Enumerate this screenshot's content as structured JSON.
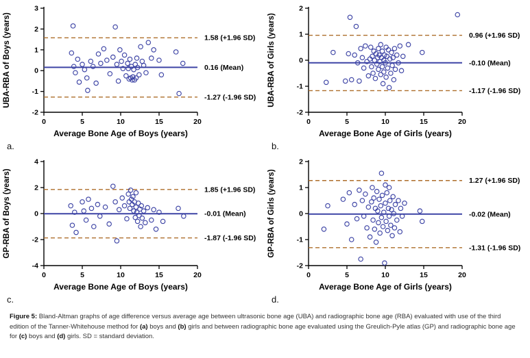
{
  "colors": {
    "points": "#3d44a5",
    "mean_line": "#3d44a5",
    "sd_line": "#ad6d2a",
    "axis": "#000000"
  },
  "panel_labels": [
    "a.",
    "b.",
    "c.",
    "d."
  ],
  "chart_data": [
    {
      "type": "scatter",
      "panel": "a",
      "xlabel": "Average Bone Age of Boys (years)",
      "ylabel": "UBA-RBA of Boys (years)",
      "xlim": [
        0,
        20
      ],
      "ylim": [
        -2,
        3
      ],
      "xticks": [
        0,
        5,
        10,
        15,
        20
      ],
      "yticks": [
        -2,
        -1,
        0,
        1,
        2,
        3
      ],
      "mean": 0.16,
      "upper_sd": 1.58,
      "lower_sd": -1.27,
      "annotations": [
        "1.58 (+1.96 SD)",
        "0.16 (Mean)",
        "-1.27 (-1.96 SD)"
      ],
      "grid": false,
      "points": [
        [
          3.8,
          2.15
        ],
        [
          3.6,
          0.85
        ],
        [
          3.9,
          0.2
        ],
        [
          4.1,
          -0.1
        ],
        [
          4.4,
          0.55
        ],
        [
          4.6,
          -0.55
        ],
        [
          5.0,
          0.3
        ],
        [
          5.3,
          0.05
        ],
        [
          5.6,
          -0.35
        ],
        [
          5.7,
          -0.95
        ],
        [
          6.1,
          0.45
        ],
        [
          6.4,
          0.2
        ],
        [
          6.8,
          -0.6
        ],
        [
          7.1,
          0.8
        ],
        [
          7.4,
          0.35
        ],
        [
          7.8,
          1.05
        ],
        [
          8.2,
          0.5
        ],
        [
          8.6,
          -0.15
        ],
        [
          9.0,
          0.65
        ],
        [
          9.3,
          2.1
        ],
        [
          9.5,
          0.3
        ],
        [
          9.7,
          -0.5
        ],
        [
          9.9,
          1.0
        ],
        [
          10.1,
          0.45
        ],
        [
          10.3,
          0.1
        ],
        [
          10.5,
          0.75
        ],
        [
          10.7,
          -0.25
        ],
        [
          10.9,
          0.35
        ],
        [
          11.0,
          0.1
        ],
        [
          11.1,
          -0.4
        ],
        [
          11.2,
          0.55
        ],
        [
          11.3,
          -0.35
        ],
        [
          11.4,
          0.2
        ],
        [
          11.5,
          -0.45
        ],
        [
          11.6,
          -0.3
        ],
        [
          11.7,
          0.05
        ],
        [
          11.8,
          -0.45
        ],
        [
          11.9,
          0.3
        ],
        [
          12.0,
          -0.35
        ],
        [
          12.1,
          0.6
        ],
        [
          12.2,
          0.15
        ],
        [
          12.4,
          -0.2
        ],
        [
          12.6,
          1.15
        ],
        [
          12.8,
          0.45
        ],
        [
          13.0,
          0.25
        ],
        [
          13.3,
          -0.1
        ],
        [
          13.6,
          1.35
        ],
        [
          14.0,
          0.6
        ],
        [
          14.3,
          1.0
        ],
        [
          15.0,
          0.5
        ],
        [
          15.3,
          -0.2
        ],
        [
          17.2,
          0.9
        ],
        [
          17.6,
          -1.1
        ],
        [
          18.1,
          0.35
        ]
      ]
    },
    {
      "type": "scatter",
      "panel": "b",
      "xlabel": "Average Bone Age of Girls (years)",
      "ylabel": "UBA-RBA of Girls (years)",
      "xlim": [
        0,
        20
      ],
      "ylim": [
        -2,
        2
      ],
      "xticks": [
        0,
        5,
        10,
        15,
        20
      ],
      "yticks": [
        -2,
        -1,
        0,
        1,
        2
      ],
      "mean": -0.1,
      "upper_sd": 0.96,
      "lower_sd": -1.17,
      "annotations": [
        "0.96 (+1.96 SD)",
        "-0.10 (Mean)",
        "-1.17 (-1.96 SD)"
      ],
      "grid": false,
      "points": [
        [
          2.3,
          -0.85
        ],
        [
          3.2,
          0.3
        ],
        [
          4.8,
          -0.8
        ],
        [
          5.2,
          0.25
        ],
        [
          5.4,
          1.65
        ],
        [
          5.6,
          -0.75
        ],
        [
          6.0,
          0.2
        ],
        [
          6.2,
          1.3
        ],
        [
          6.4,
          -0.1
        ],
        [
          6.6,
          -0.8
        ],
        [
          6.8,
          0.45
        ],
        [
          7.0,
          0.1
        ],
        [
          7.2,
          -0.3
        ],
        [
          7.4,
          0.55
        ],
        [
          7.6,
          -0.05
        ],
        [
          7.8,
          -0.6
        ],
        [
          8.0,
          0.05
        ],
        [
          8.1,
          0.5
        ],
        [
          8.2,
          -0.25
        ],
        [
          8.3,
          0.15
        ],
        [
          8.4,
          -0.5
        ],
        [
          8.5,
          0.35
        ],
        [
          8.6,
          0.0
        ],
        [
          8.7,
          -0.7
        ],
        [
          8.8,
          0.25
        ],
        [
          8.9,
          -0.15
        ],
        [
          9.0,
          0.1
        ],
        [
          9.1,
          0.45
        ],
        [
          9.1,
          -0.35
        ],
        [
          9.2,
          0.2
        ],
        [
          9.3,
          -0.05
        ],
        [
          9.4,
          0.6
        ],
        [
          9.4,
          -0.55
        ],
        [
          9.5,
          0.1
        ],
        [
          9.6,
          -0.25
        ],
        [
          9.6,
          0.35
        ],
        [
          9.7,
          -0.9
        ],
        [
          9.8,
          0.0
        ],
        [
          9.8,
          -0.45
        ],
        [
          9.9,
          0.2
        ],
        [
          10.0,
          -0.1
        ],
        [
          10.1,
          0.5
        ],
        [
          10.1,
          -0.65
        ],
        [
          10.2,
          0.15
        ],
        [
          10.3,
          -0.3
        ],
        [
          10.4,
          0.4
        ],
        [
          10.5,
          -1.05
        ],
        [
          10.6,
          0.05
        ],
        [
          10.7,
          -0.5
        ],
        [
          10.8,
          0.3
        ],
        [
          10.9,
          -0.2
        ],
        [
          11.0,
          0.1
        ],
        [
          11.1,
          -0.75
        ],
        [
          11.2,
          0.45
        ],
        [
          11.3,
          -0.35
        ],
        [
          11.5,
          0.2
        ],
        [
          11.7,
          -0.1
        ],
        [
          11.9,
          0.55
        ],
        [
          12.1,
          -0.4
        ],
        [
          12.3,
          0.15
        ],
        [
          13.0,
          0.6
        ],
        [
          14.8,
          0.3
        ],
        [
          19.4,
          1.75
        ]
      ]
    },
    {
      "type": "scatter",
      "panel": "c",
      "xlabel": "Average Bone Age of Boys (years)",
      "ylabel": "GP-RBA of Boys (years)",
      "xlim": [
        0,
        20
      ],
      "ylim": [
        -4,
        4
      ],
      "xticks": [
        0,
        5,
        10,
        15,
        20
      ],
      "yticks": [
        -4,
        -2,
        0,
        2,
        4
      ],
      "mean": -0.01,
      "upper_sd": 1.85,
      "lower_sd": -1.87,
      "annotations": [
        "1.85 (+1.96 SD)",
        "-0.01 (Mean)",
        "-1.87 (-1.96 SD)"
      ],
      "grid": false,
      "points": [
        [
          3.5,
          0.6
        ],
        [
          3.7,
          -0.9
        ],
        [
          4.0,
          0.1
        ],
        [
          4.2,
          -1.45
        ],
        [
          5.0,
          0.9
        ],
        [
          5.2,
          0.2
        ],
        [
          5.5,
          -0.5
        ],
        [
          5.8,
          1.1
        ],
        [
          6.2,
          0.4
        ],
        [
          6.5,
          -1.0
        ],
        [
          7.0,
          0.7
        ],
        [
          7.3,
          -0.2
        ],
        [
          8.0,
          0.5
        ],
        [
          8.5,
          -0.8
        ],
        [
          9.0,
          2.1
        ],
        [
          9.3,
          0.9
        ],
        [
          9.5,
          -2.1
        ],
        [
          9.8,
          0.3
        ],
        [
          10.2,
          1.2
        ],
        [
          10.5,
          0.6
        ],
        [
          10.8,
          -0.4
        ],
        [
          11.0,
          1.5
        ],
        [
          11.1,
          0.9
        ],
        [
          11.2,
          0.4
        ],
        [
          11.3,
          1.8
        ],
        [
          11.4,
          1.1
        ],
        [
          11.5,
          0.7
        ],
        [
          11.6,
          1.3
        ],
        [
          11.7,
          0.2
        ],
        [
          11.8,
          0.9
        ],
        [
          11.9,
          -0.3
        ],
        [
          12.0,
          0.5
        ],
        [
          12.0,
          1.6
        ],
        [
          12.1,
          0.1
        ],
        [
          12.2,
          -0.6
        ],
        [
          12.3,
          0.8
        ],
        [
          12.4,
          -0.15
        ],
        [
          12.5,
          0.35
        ],
        [
          12.6,
          -1.0
        ],
        [
          12.7,
          0.6
        ],
        [
          12.8,
          -0.35
        ],
        [
          13.0,
          0.2
        ],
        [
          13.2,
          -0.7
        ],
        [
          13.5,
          0.45
        ],
        [
          14.0,
          -0.5
        ],
        [
          14.3,
          0.3
        ],
        [
          14.6,
          -1.2
        ],
        [
          15.0,
          0.1
        ],
        [
          15.5,
          -0.6
        ],
        [
          17.5,
          0.4
        ],
        [
          18.2,
          -0.2
        ]
      ]
    },
    {
      "type": "scatter",
      "panel": "d",
      "xlabel": "Average Bone Age of Girls (years)",
      "ylabel": "GP-RBA of Girls (years)",
      "xlim": [
        0,
        20
      ],
      "ylim": [
        -2,
        2
      ],
      "xticks": [
        0,
        5,
        10,
        15,
        20
      ],
      "yticks": [
        -2,
        -1,
        0,
        1,
        2
      ],
      "mean": -0.02,
      "upper_sd": 1.27,
      "lower_sd": -1.31,
      "annotations": [
        "1.27 (+1.96 SD)",
        "-0.02 (Mean)",
        "-1.31 (-1.96 SD)"
      ],
      "grid": false,
      "points": [
        [
          2.0,
          -0.6
        ],
        [
          2.5,
          0.3
        ],
        [
          4.5,
          0.55
        ],
        [
          5.0,
          -0.4
        ],
        [
          5.3,
          0.8
        ],
        [
          5.6,
          -1.0
        ],
        [
          6.0,
          0.35
        ],
        [
          6.3,
          -0.2
        ],
        [
          6.6,
          0.9
        ],
        [
          6.8,
          -1.75
        ],
        [
          7.0,
          0.5
        ],
        [
          7.2,
          -0.1
        ],
        [
          7.4,
          0.75
        ],
        [
          7.6,
          -0.55
        ],
        [
          7.8,
          0.25
        ],
        [
          8.0,
          -0.9
        ],
        [
          8.2,
          0.45
        ],
        [
          8.3,
          1.0
        ],
        [
          8.4,
          -0.25
        ],
        [
          8.5,
          0.6
        ],
        [
          8.6,
          -0.6
        ],
        [
          8.7,
          0.2
        ],
        [
          8.8,
          -1.1
        ],
        [
          8.9,
          0.85
        ],
        [
          9.0,
          0.1
        ],
        [
          9.1,
          -0.35
        ],
        [
          9.2,
          0.55
        ],
        [
          9.3,
          -0.75
        ],
        [
          9.4,
          0.3
        ],
        [
          9.5,
          1.55
        ],
        [
          9.5,
          -0.15
        ],
        [
          9.6,
          0.7
        ],
        [
          9.7,
          -0.5
        ],
        [
          9.8,
          0.05
        ],
        [
          9.9,
          -1.9
        ],
        [
          10.0,
          0.4
        ],
        [
          10.0,
          1.1
        ],
        [
          10.1,
          -0.3
        ],
        [
          10.2,
          0.8
        ],
        [
          10.3,
          -0.65
        ],
        [
          10.4,
          0.2
        ],
        [
          10.5,
          1.0
        ],
        [
          10.5,
          -0.1
        ],
        [
          10.6,
          0.5
        ],
        [
          10.7,
          -0.45
        ],
        [
          10.8,
          0.15
        ],
        [
          10.9,
          -0.85
        ],
        [
          11.0,
          0.65
        ],
        [
          11.1,
          0.0
        ],
        [
          11.2,
          -0.55
        ],
        [
          11.3,
          0.35
        ],
        [
          11.5,
          -0.25
        ],
        [
          11.7,
          0.5
        ],
        [
          11.9,
          -0.7
        ],
        [
          12.0,
          0.2
        ],
        [
          12.2,
          -0.1
        ],
        [
          12.5,
          0.4
        ],
        [
          14.5,
          0.1
        ],
        [
          14.8,
          -0.3
        ]
      ]
    }
  ],
  "caption": {
    "segments": [
      {
        "text": "Figure 5:  ",
        "bold": true
      },
      {
        "text": "Bland-Altman graphs of age difference versus average age between ultrasonic bone age (UBA) and radiographic bone age (RBA) evaluated with use of the third edition of the Tanner-Whitehouse method for ",
        "bold": false
      },
      {
        "text": "(a)",
        "bold": true
      },
      {
        "text": " boys and ",
        "bold": false
      },
      {
        "text": "(b)",
        "bold": true
      },
      {
        "text": " girls and between radiographic bone age evaluated using the Greulich-Pyle atlas (GP) and radiographic bone age for ",
        "bold": false
      },
      {
        "text": "(c)",
        "bold": true
      },
      {
        "text": " boys and ",
        "bold": false
      },
      {
        "text": "(d)",
        "bold": true
      },
      {
        "text": " girls. SD = standard deviation.",
        "bold": false
      }
    ]
  }
}
